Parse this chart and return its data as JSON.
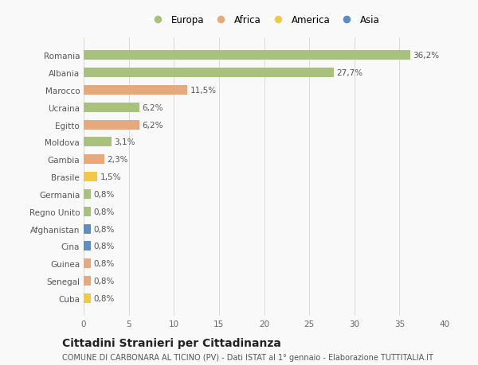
{
  "countries": [
    "Romania",
    "Albania",
    "Marocco",
    "Ucraina",
    "Egitto",
    "Moldova",
    "Gambia",
    "Brasile",
    "Germania",
    "Regno Unito",
    "Afghanistan",
    "Cina",
    "Guinea",
    "Senegal",
    "Cuba"
  ],
  "values": [
    36.2,
    27.7,
    11.5,
    6.2,
    6.2,
    3.1,
    2.3,
    1.5,
    0.8,
    0.8,
    0.8,
    0.8,
    0.8,
    0.8,
    0.8
  ],
  "labels": [
    "36,2%",
    "27,7%",
    "11,5%",
    "6,2%",
    "6,2%",
    "3,1%",
    "2,3%",
    "1,5%",
    "0,8%",
    "0,8%",
    "0,8%",
    "0,8%",
    "0,8%",
    "0,8%",
    "0,8%"
  ],
  "continents": [
    "Europa",
    "Europa",
    "Africa",
    "Europa",
    "Africa",
    "Europa",
    "Africa",
    "America",
    "Europa",
    "Europa",
    "Asia",
    "Asia",
    "Africa",
    "Africa",
    "America"
  ],
  "continent_colors": {
    "Europa": "#a8c17c",
    "Africa": "#e8a87c",
    "America": "#f0c84a",
    "Asia": "#5b8ec4"
  },
  "legend_order": [
    "Europa",
    "Africa",
    "America",
    "Asia"
  ],
  "xlim": [
    0,
    40
  ],
  "xticks": [
    0,
    5,
    10,
    15,
    20,
    25,
    30,
    35,
    40
  ],
  "title": "Cittadini Stranieri per Cittadinanza",
  "subtitle": "COMUNE DI CARBONARA AL TICINO (PV) - Dati ISTAT al 1° gennaio - Elaborazione TUTTITALIA.IT",
  "background_color": "#f9f9f9",
  "grid_color": "#d8d8d8",
  "bar_height": 0.55,
  "label_fontsize": 7.5,
  "tick_fontsize": 7.5,
  "title_fontsize": 10,
  "subtitle_fontsize": 7
}
